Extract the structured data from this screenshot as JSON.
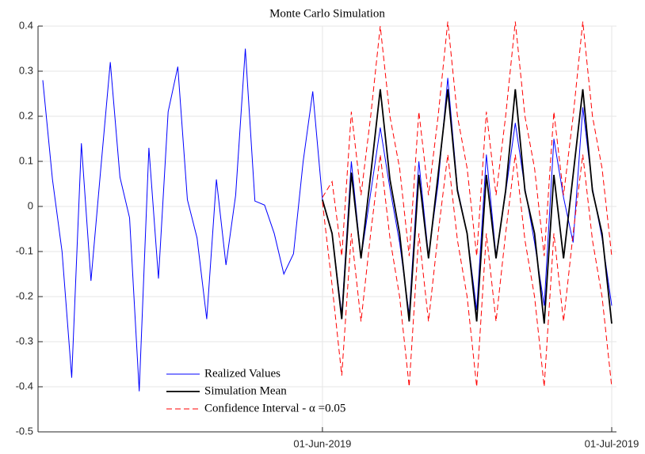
{
  "chart_data": {
    "type": "line",
    "title": "Monte Carlo Simulation",
    "x": [
      "2019-05-03",
      "2019-05-04",
      "2019-05-05",
      "2019-05-06",
      "2019-05-07",
      "2019-05-08",
      "2019-05-09",
      "2019-05-10",
      "2019-05-11",
      "2019-05-12",
      "2019-05-13",
      "2019-05-14",
      "2019-05-15",
      "2019-05-16",
      "2019-05-17",
      "2019-05-18",
      "2019-05-19",
      "2019-05-20",
      "2019-05-21",
      "2019-05-22",
      "2019-05-23",
      "2019-05-24",
      "2019-05-25",
      "2019-05-26",
      "2019-05-27",
      "2019-05-28",
      "2019-05-29",
      "2019-05-30",
      "2019-05-31",
      "2019-06-01",
      "2019-06-02",
      "2019-06-03",
      "2019-06-04",
      "2019-06-05",
      "2019-06-06",
      "2019-06-07",
      "2019-06-08",
      "2019-06-09",
      "2019-06-10",
      "2019-06-11",
      "2019-06-12",
      "2019-06-13",
      "2019-06-14",
      "2019-06-15",
      "2019-06-16",
      "2019-06-17",
      "2019-06-18",
      "2019-06-19",
      "2019-06-20",
      "2019-06-21",
      "2019-06-22",
      "2019-06-23",
      "2019-06-24",
      "2019-06-25",
      "2019-06-26",
      "2019-06-27",
      "2019-06-28",
      "2019-06-29",
      "2019-06-30",
      "2019-07-01"
    ],
    "series": [
      {
        "name": "Realized Values",
        "color": "#0000ff",
        "linestyle": "solid",
        "width": 1,
        "values": [
          0.28,
          0.06,
          -0.1,
          -0.38,
          0.14,
          -0.165,
          0.08,
          0.32,
          0.065,
          -0.025,
          -0.41,
          0.13,
          -0.16,
          0.21,
          0.31,
          0.015,
          -0.07,
          -0.25,
          0.06,
          -0.13,
          0.025,
          0.35,
          0.012,
          0.003,
          -0.06,
          -0.15,
          -0.105,
          0.1,
          0.255,
          0.015,
          -0.06,
          -0.24,
          0.1,
          -0.115,
          0.03,
          0.175,
          0.04,
          -0.08,
          -0.24,
          0.1,
          -0.11,
          0.05,
          0.285,
          0.04,
          -0.06,
          -0.23,
          0.115,
          -0.11,
          0.03,
          0.185,
          0.04,
          -0.08,
          -0.22,
          0.15,
          0.02,
          -0.08,
          0.22,
          0.04,
          -0.07,
          -0.22
        ]
      },
      {
        "name": "Simulation Mean",
        "color": "#000000",
        "linestyle": "solid",
        "width": 1.8,
        "values": [
          null,
          null,
          null,
          null,
          null,
          null,
          null,
          null,
          null,
          null,
          null,
          null,
          null,
          null,
          null,
          null,
          null,
          null,
          null,
          null,
          null,
          null,
          null,
          null,
          null,
          null,
          null,
          null,
          null,
          0.015,
          -0.06,
          -0.25,
          0.075,
          -0.115,
          0.07,
          0.26,
          0.06,
          -0.06,
          -0.255,
          0.07,
          -0.115,
          0.07,
          0.26,
          0.035,
          -0.06,
          -0.255,
          0.07,
          -0.115,
          0.035,
          0.26,
          0.035,
          -0.06,
          -0.26,
          0.07,
          -0.115,
          0.07,
          0.26,
          0.035,
          -0.06,
          -0.26
        ]
      },
      {
        "name": "Confidence Interval - α =0.05",
        "color": "#ff0000",
        "linestyle": "dashed",
        "width": 1,
        "values": [
          null,
          null,
          null,
          null,
          null,
          null,
          null,
          null,
          null,
          null,
          null,
          null,
          null,
          null,
          null,
          null,
          null,
          null,
          null,
          null,
          null,
          null,
          null,
          null,
          null,
          null,
          null,
          null,
          null,
          0.02,
          0.055,
          -0.11,
          0.21,
          0.025,
          0.2,
          0.4,
          0.2,
          0.085,
          -0.11,
          0.21,
          0.025,
          0.2,
          0.41,
          0.2,
          0.085,
          -0.11,
          0.21,
          0.025,
          0.2,
          0.41,
          0.2,
          0.085,
          -0.11,
          0.21,
          0.025,
          0.2,
          0.41,
          0.2,
          0.085,
          -0.11
        ]
      },
      {
        "color": "#ff0000",
        "linestyle": "dashed",
        "width": 1,
        "values": [
          null,
          null,
          null,
          null,
          null,
          null,
          null,
          null,
          null,
          null,
          null,
          null,
          null,
          null,
          null,
          null,
          null,
          null,
          null,
          null,
          null,
          null,
          null,
          null,
          null,
          null,
          null,
          null,
          null,
          0.01,
          -0.175,
          -0.375,
          -0.06,
          -0.255,
          -0.06,
          0.115,
          -0.07,
          -0.2,
          -0.4,
          -0.06,
          -0.255,
          -0.06,
          0.115,
          -0.075,
          -0.2,
          -0.4,
          -0.06,
          -0.255,
          -0.06,
          0.115,
          -0.075,
          -0.2,
          -0.4,
          -0.06,
          -0.255,
          -0.06,
          0.115,
          -0.075,
          -0.2,
          -0.4
        ]
      }
    ],
    "xlim": [
      "2019-05-03",
      "2019-07-01"
    ],
    "xticks": [
      {
        "value": "2019-06-01",
        "label": "01-Jun-2019"
      },
      {
        "value": "2019-07-01",
        "label": "01-Jul-2019"
      }
    ],
    "ylim": [
      -0.5,
      0.4
    ],
    "yticks": [
      -0.5,
      -0.4,
      -0.3,
      -0.2,
      -0.1,
      0,
      0.1,
      0.2,
      0.3,
      0.4
    ],
    "grid": true,
    "legend": "lower left"
  }
}
